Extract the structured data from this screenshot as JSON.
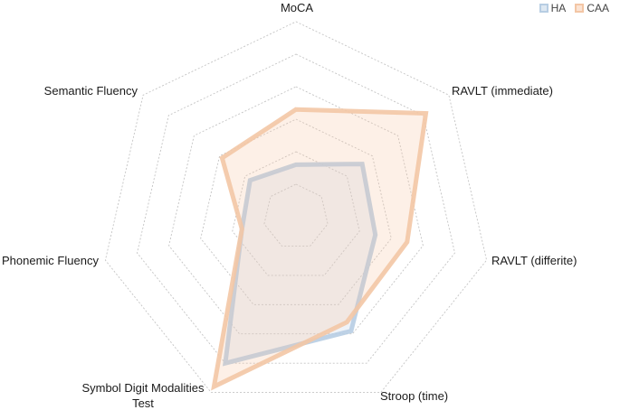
{
  "chart_data": {
    "type": "radar",
    "axes": [
      "MoCA",
      "RAVLT (immediate)",
      "RAVLT (differite)",
      "Stroop (time)",
      "Symbol Digit Modalities Test",
      "Phonemic Fluency",
      "Semantic Fluency"
    ],
    "rlim": [
      0,
      6
    ],
    "rings": 6,
    "grid": true,
    "legend_position": "top-right",
    "series": [
      {
        "name": "HA",
        "color": "#b7cde3",
        "fill": "rgba(190,208,226,0.25)",
        "values": [
          1.6,
          2.6,
          2.5,
          3.9,
          5.0,
          1.7,
          1.8
        ]
      },
      {
        "name": "CAA",
        "color": "#f3c6a5",
        "fill": "rgba(246,196,160,0.25)",
        "values": [
          3.3,
          5.1,
          3.5,
          3.6,
          5.8,
          1.7,
          2.9
        ]
      }
    ]
  }
}
